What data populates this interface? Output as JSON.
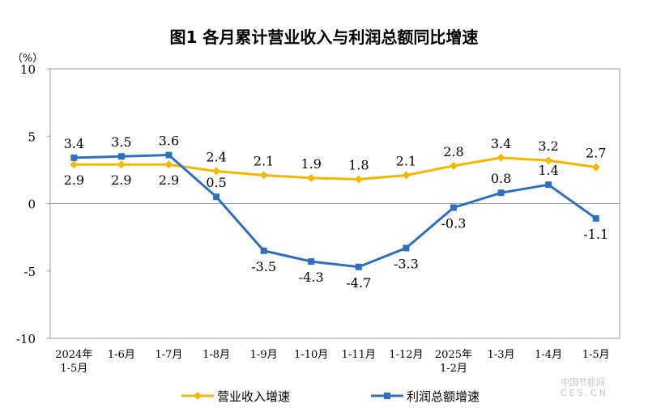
{
  "chart_data": {
    "type": "line",
    "title": "图1  各月累计营业收入与利润总额同比增速",
    "ylabel": "（%）",
    "ylim": [
      -10,
      10
    ],
    "yticks": [
      -10,
      -5,
      0,
      5,
      10
    ],
    "grid": false,
    "legend_placement": "bottom",
    "categories": [
      [
        "2024年",
        "1-5月"
      ],
      [
        "1-6月"
      ],
      [
        "1-7月"
      ],
      [
        "1-8月"
      ],
      [
        "1-9月"
      ],
      [
        "1-10月"
      ],
      [
        "1-11月"
      ],
      [
        "1-12月"
      ],
      [
        "2025年",
        "1-2月"
      ],
      [
        "1-3月"
      ],
      [
        "1-4月"
      ],
      [
        "1-5月"
      ]
    ],
    "series": [
      {
        "name": "营业收入增速",
        "color": "#F5B800",
        "marker": "diamond",
        "values": [
          2.9,
          2.9,
          2.9,
          2.4,
          2.1,
          1.9,
          1.8,
          2.1,
          2.8,
          3.4,
          3.2,
          2.7
        ]
      },
      {
        "name": "利润总额增速",
        "color": "#2E6FC0",
        "marker": "square",
        "values": [
          3.4,
          3.5,
          3.6,
          0.5,
          -3.5,
          -4.3,
          -4.7,
          -3.3,
          -0.3,
          0.8,
          1.4,
          -1.1
        ]
      }
    ]
  },
  "watermark": {
    "line1": "中国节能网",
    "line2": "CES.CN"
  }
}
